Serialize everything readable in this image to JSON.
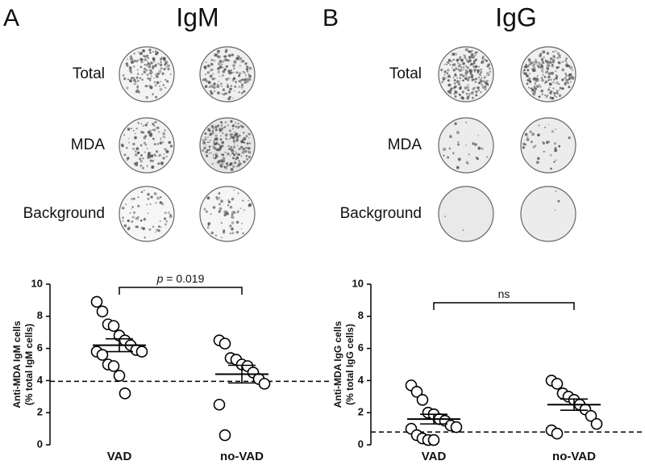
{
  "panels": [
    {
      "letter": "A",
      "title": "IgM",
      "rows": [
        "Total",
        "MDA",
        "Background"
      ]
    },
    {
      "letter": "B",
      "title": "IgG",
      "rows": [
        "Total",
        "MDA",
        "Background"
      ]
    }
  ],
  "chart_data": [
    {
      "type": "dot",
      "y_label": [
        "Anti-MDA IgM cells",
        "(% total IgM cells)"
      ],
      "categories": [
        "VAD",
        "no-VAD"
      ],
      "values": [
        [
          8.9,
          8.3,
          7.5,
          7.4,
          6.8,
          6.5,
          6.2,
          5.9,
          5.8,
          5.8,
          5.6,
          5.0,
          4.9,
          4.3,
          3.2
        ],
        [
          6.5,
          6.3,
          5.4,
          5.3,
          5.0,
          4.9,
          4.5,
          4.1,
          3.8,
          2.5,
          0.6
        ]
      ],
      "mean": [
        6.2,
        4.4
      ],
      "sem": [
        0.4,
        0.55
      ],
      "threshold": 3.95,
      "annotation": {
        "italic": "p",
        "text": " = 0.019"
      },
      "ylim": [
        0,
        10
      ],
      "yticks": [
        0,
        2,
        4,
        6,
        8,
        10
      ]
    },
    {
      "type": "dot",
      "y_label": [
        "Anti-MDA IgG cells",
        "(% total IgG cells)"
      ],
      "categories": [
        "VAD",
        "no-VAD"
      ],
      "values": [
        [
          3.7,
          3.3,
          2.8,
          2.0,
          1.9,
          1.6,
          1.5,
          1.2,
          1.1,
          1.0,
          0.6,
          0.4,
          0.3,
          0.3
        ],
        [
          4.0,
          3.8,
          3.2,
          3.0,
          2.8,
          2.5,
          2.2,
          1.8,
          1.3,
          0.9,
          0.7
        ]
      ],
      "mean": [
        1.6,
        2.5
      ],
      "sem": [
        0.3,
        0.35
      ],
      "threshold": 0.8,
      "annotation": {
        "text": "ns"
      },
      "ylim": [
        0,
        10
      ],
      "yticks": [
        0,
        2,
        4,
        6,
        8,
        10
      ]
    }
  ]
}
